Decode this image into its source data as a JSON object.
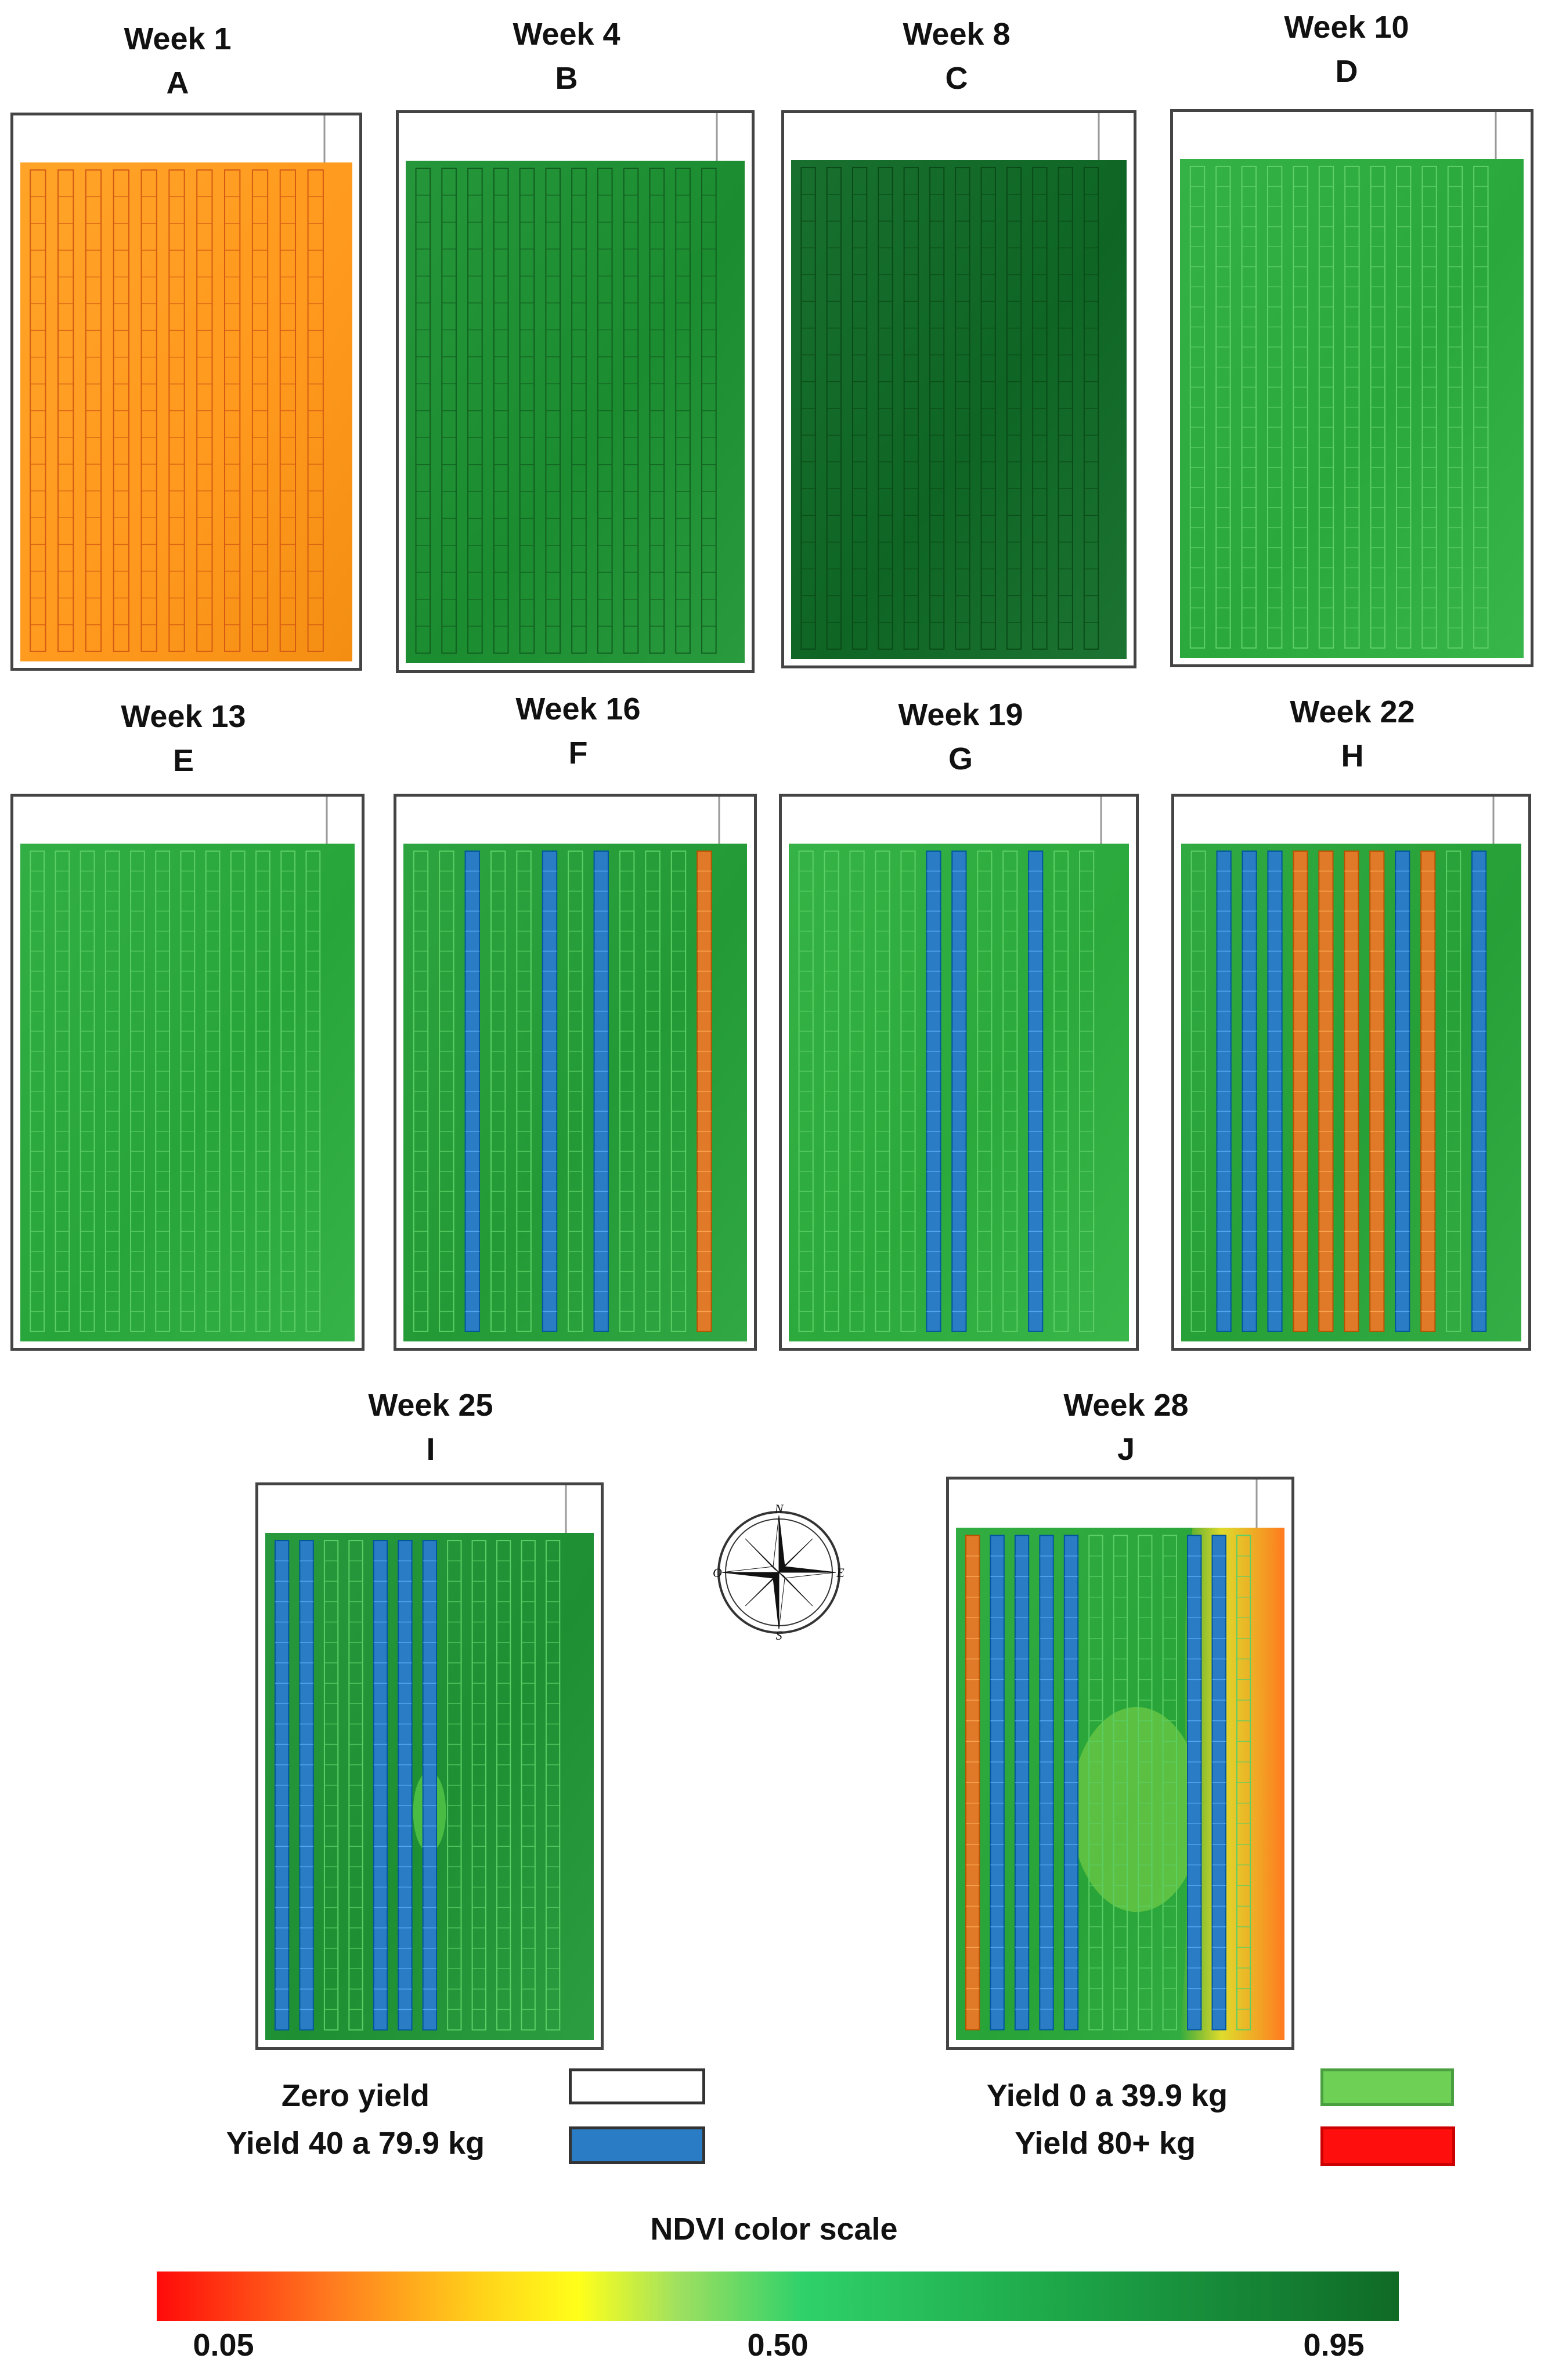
{
  "panels": [
    {
      "week": "Week 1",
      "letter": "A",
      "base": "#ff9a1e",
      "row": "#d45a14",
      "highlights": [],
      "rowCount": 11
    },
    {
      "week": "Week 4",
      "letter": "B",
      "base": "#1c8c30",
      "row": "#115f20",
      "highlights": [],
      "rowCount": 12
    },
    {
      "week": "Week 8",
      "letter": "C",
      "base": "#0f6624",
      "row": "#0a4a18",
      "highlights": [],
      "rowCount": 12
    },
    {
      "week": "Week 10",
      "letter": "D",
      "base": "#2aa83c",
      "row": "#5fd066",
      "highlights": [],
      "rowCount": 12
    },
    {
      "week": "Week 13",
      "letter": "E",
      "base": "#28a53a",
      "row": "#5ccf66",
      "highlights": [],
      "rowCount": 12
    },
    {
      "week": "Week 16",
      "letter": "F",
      "base": "#239a36",
      "row": "#5ccf66",
      "highlights": [
        [
          2,
          "blue"
        ],
        [
          5,
          "blue"
        ],
        [
          7,
          "blue"
        ],
        [
          11,
          "orange"
        ]
      ],
      "rowCount": 12
    },
    {
      "week": "Week 19",
      "letter": "G",
      "base": "#2ba93c",
      "row": "#5ccf66",
      "highlights": [
        [
          5,
          "blue"
        ],
        [
          6,
          "blue"
        ],
        [
          9,
          "blue"
        ]
      ],
      "rowCount": 12
    },
    {
      "week": "Week 22",
      "letter": "H",
      "base": "#26a037",
      "row": "#5ccf66",
      "highlights": [
        [
          1,
          "blue"
        ],
        [
          2,
          "blue"
        ],
        [
          3,
          "blue"
        ],
        [
          4,
          "orange"
        ],
        [
          5,
          "orange"
        ],
        [
          6,
          "orange"
        ],
        [
          7,
          "orange"
        ],
        [
          8,
          "blue"
        ],
        [
          9,
          "orange"
        ],
        [
          11,
          "blue"
        ]
      ],
      "rowCount": 12
    },
    {
      "week": "Week 25",
      "letter": "I",
      "base": "#1f8f33",
      "row": "#5ccf66",
      "highlights": [
        [
          0,
          "blue"
        ],
        [
          1,
          "blue"
        ],
        [
          4,
          "blue"
        ],
        [
          5,
          "blue"
        ],
        [
          6,
          "blue"
        ]
      ],
      "rowCount": 12
    },
    {
      "week": "Week 28",
      "letter": "J",
      "base": "#27a338",
      "row": "#5ccf66",
      "highlights": [
        [
          0,
          "orange"
        ],
        [
          1,
          "blue"
        ],
        [
          2,
          "blue"
        ],
        [
          3,
          "blue"
        ],
        [
          4,
          "blue"
        ],
        [
          9,
          "blue"
        ],
        [
          10,
          "blue"
        ]
      ],
      "rowCount": 12
    }
  ],
  "colors": {
    "blue": "#2a7dc4",
    "orange": "#e07a28"
  },
  "compass": {
    "n": "N",
    "s": "S",
    "e": "E",
    "w": "O"
  },
  "legend": {
    "zero_yield": "Zero yield",
    "yield_40": "Yield 40 a 79.9 kg",
    "yield_0": "Yield 0 a 39.9 kg",
    "yield_80": "Yield 80+ kg",
    "zero_color": "#ffffff",
    "blue_color": "#2a7dc4",
    "light_green_color": "#6ed055",
    "red_color": "#ff0e0e"
  },
  "ndvi_scale": {
    "title": "NDVI color scale",
    "min": "0.05",
    "mid": "0.50",
    "max": "0.95"
  }
}
